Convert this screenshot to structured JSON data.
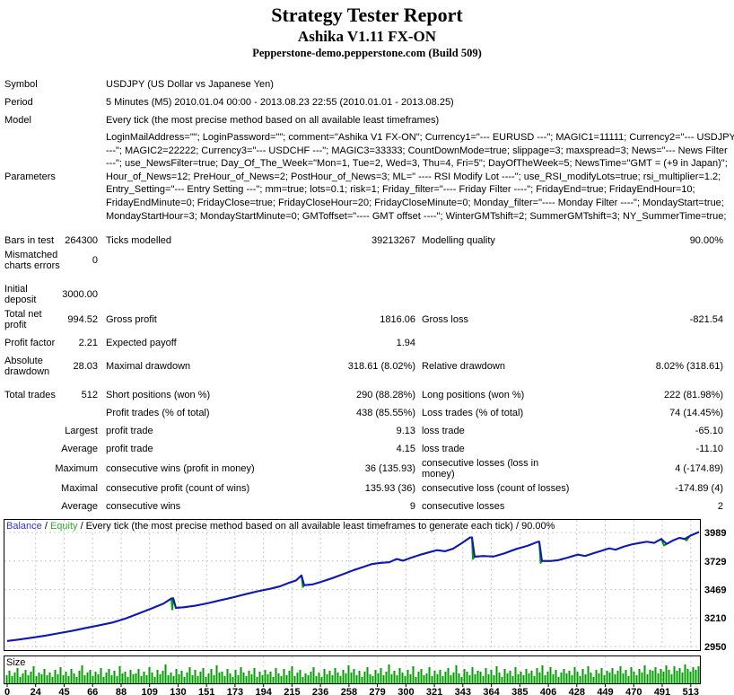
{
  "header": {
    "title": "Strategy Tester Report",
    "subtitle": "Ashika V1.11 FX-ON",
    "server": "Pepperstone-demo.pepperstone.com (Build 509)"
  },
  "info_table": {
    "rows": [
      {
        "label": "Symbol",
        "value": "USDJPY (US Dollar vs Japanese Yen)"
      },
      {
        "label": "Period",
        "value": "5 Minutes (M5) 2010.01.04 00:00 - 2013.08.23 22:55 (2010.01.01 - 2013.08.25)"
      },
      {
        "label": "Model",
        "value": "Every tick (the most precise method based on all available least timeframes)"
      }
    ],
    "parameters_label": "Parameters",
    "parameters_lines": [
      "LoginMailAddress=\"\"; LoginPassword=\"\"; comment=\"Ashika V1 FX-ON\"; Currency1=\"--- EURUSD ---\"; MAGIC1=11111; Currency2=\"--- USDJPY",
      "---\"; MAGIC2=22222; Currency3=\"--- USDCHF ---\"; MAGIC3=33333; CountDownMode=true; slippage=3; maxspread=3; News=\"--- News Filter",
      "---\"; use_NewsFilter=true; Day_Of_The_Week=\"Mon=1, Tue=2, Wed=3, Thu=4, Fri=5\"; DayOfTheWeek=5; NewsTime=\"GMT = (+9 in Japan)\";",
      "Hour_of_News=12; PreHour_of_News=2; PostHour_of_News=3; ML=\" ---- RSI Modify Lot ----\"; use_RSI_modifyLots=true; rsi_multiplier=1.2;",
      "Entry_Setting=\"--- Entry Setting ---\"; mm=true; lots=0.1; risk=1; Friday_filter=\"---- Friday Filter ----\"; FridayEnd=true; FridayEndHour=10;",
      "FridayEndMinute=0; FridayClose=true; FridayCloseHour=20; FridayCloseMinute=0; Monday_filter=\"---- Monday Filter ----\"; MondayStart=true;",
      "MondayStartHour=3; MondayStartMinute=0; GMToffset=\"---- GMT offset ----\"; WinterGMTshift=2; SummerGMTshift=3; NY_SummerTime=true;"
    ]
  },
  "stats_table": {
    "rows": [
      {
        "c1": "Bars in test",
        "v1": "264300",
        "c2": "Ticks modelled",
        "v2": "39213267",
        "c3": "Modelling quality",
        "v3": "90.00%"
      },
      {
        "c1": "Mismatched charts errors",
        "v1": "0"
      },
      {
        "c1": "Initial deposit",
        "v1": "3000.00"
      },
      {
        "c1": "Total net profit",
        "v1": "994.52",
        "c2": "Gross profit",
        "v2": "1816.06",
        "c3": "Gross loss",
        "v3": "-821.54"
      },
      {
        "c1": "Profit factor",
        "v1": "2.21",
        "c2": "Expected payoff",
        "v2": "1.94"
      },
      {
        "c1": "Absolute drawdown",
        "v1": "28.03",
        "c2": "Maximal drawdown",
        "v2": "318.61 (8.02%)",
        "c3": "Relative drawdown",
        "v3": "8.02% (318.61)"
      },
      {
        "c1": "Total trades",
        "v1": "512",
        "c2": "Short positions (won %)",
        "v2": "290 (88.28%)",
        "c3": "Long positions (won %)",
        "v3": "222 (81.98%)"
      },
      {
        "c2": "Profit trades (% of total)",
        "v2": "438 (85.55%)",
        "c3": "Loss trades (% of total)",
        "v3": "74 (14.45%)"
      },
      {
        "v1": "Largest",
        "c2": "profit trade",
        "v2": "9.13",
        "c3": "loss trade",
        "v3": "-65.10"
      },
      {
        "v1": "Average",
        "c2": "profit trade",
        "v2": "4.15",
        "c3": "loss trade",
        "v3": "-11.10"
      },
      {
        "v1": "Maximum",
        "c2": "consecutive wins (profit in money)",
        "v2": "36 (135.93)",
        "c3": "consecutive losses (loss in money)",
        "v3": "4 (-174.89)"
      },
      {
        "v1": "Maximal",
        "c2": "consecutive profit (count of wins)",
        "v2": "135.93 (36)",
        "c3": "consecutive loss (count of losses)",
        "v3": "-174.89 (4)"
      },
      {
        "v1": "Average",
        "c2": "consecutive wins",
        "v2": "9",
        "c3": "consecutive losses",
        "v3": "2"
      }
    ]
  },
  "chart_data": [
    {
      "type": "line",
      "title": "Balance / Equity / Every tick (the most precise method based on all available least timeframes to generate each tick) / 90.00%",
      "legend": {
        "balance_label": "Balance",
        "separator": " / ",
        "equity_label": "Equity",
        "suffix": " / Every tick (the most precise method based on all available least timeframes to generate each tick) / 90.00%",
        "balance_color": "#3333cc",
        "equity_color": "#2eb030"
      },
      "grid": true,
      "yticks": [
        3989,
        3729,
        3469,
        3210,
        2950
      ],
      "ylim": [
        2950,
        4080
      ],
      "series": [
        {
          "name": "Balance",
          "color": "#1414b8",
          "points": [
            [
              8,
              3000
            ],
            [
              20,
              3012
            ],
            [
              35,
              3030
            ],
            [
              50,
              3048
            ],
            [
              65,
              3070
            ],
            [
              80,
              3092
            ],
            [
              95,
              3118
            ],
            [
              110,
              3142
            ],
            [
              125,
              3168
            ],
            [
              140,
              3205
            ],
            [
              155,
              3252
            ],
            [
              170,
              3300
            ],
            [
              182,
              3340
            ],
            [
              191,
              3388
            ],
            [
              193,
              3390
            ],
            [
              196,
              3302
            ],
            [
              205,
              3308
            ],
            [
              218,
              3322
            ],
            [
              232,
              3345
            ],
            [
              246,
              3372
            ],
            [
              260,
              3398
            ],
            [
              274,
              3428
            ],
            [
              288,
              3455
            ],
            [
              302,
              3478
            ],
            [
              312,
              3498
            ],
            [
              322,
              3530
            ],
            [
              330,
              3552
            ],
            [
              336,
              3598
            ],
            [
              339,
              3508
            ],
            [
              348,
              3515
            ],
            [
              358,
              3540
            ],
            [
              370,
              3572
            ],
            [
              382,
              3608
            ],
            [
              394,
              3645
            ],
            [
              404,
              3672
            ],
            [
              414,
              3700
            ],
            [
              424,
              3712
            ],
            [
              434,
              3718
            ],
            [
              442,
              3748
            ],
            [
              449,
              3732
            ],
            [
              458,
              3758
            ],
            [
              468,
              3785
            ],
            [
              478,
              3808
            ],
            [
              487,
              3828
            ],
            [
              496,
              3818
            ],
            [
              505,
              3842
            ],
            [
              514,
              3888
            ],
            [
              524,
              3944
            ],
            [
              526,
              3944
            ],
            [
              529,
              3768
            ],
            [
              538,
              3775
            ],
            [
              550,
              3770
            ],
            [
              562,
              3798
            ],
            [
              575,
              3838
            ],
            [
              588,
              3868
            ],
            [
              599,
              3903
            ],
            [
              601,
              3905
            ],
            [
              604,
              3730
            ],
            [
              614,
              3729
            ],
            [
              622,
              3736
            ],
            [
              632,
              3758
            ],
            [
              644,
              3788
            ],
            [
              652,
              3775
            ],
            [
              662,
              3802
            ],
            [
              671,
              3824
            ],
            [
              679,
              3844
            ],
            [
              686,
              3832
            ],
            [
              695,
              3860
            ],
            [
              704,
              3880
            ],
            [
              713,
              3894
            ],
            [
              721,
              3905
            ],
            [
              729,
              3894
            ],
            [
              737,
              3930
            ],
            [
              743,
              3884
            ],
            [
              750,
              3916
            ],
            [
              757,
              3940
            ],
            [
              763,
              3930
            ],
            [
              769,
              3958
            ],
            [
              774,
              3976
            ],
            [
              779,
              3994
            ]
          ]
        },
        {
          "name": "Equity",
          "color": "#00a000",
          "extra_points": [
            [
              192,
              3288
            ],
            [
              337.5,
              3492
            ],
            [
              527,
              3748
            ],
            [
              602.5,
              3712
            ],
            [
              740,
              3870
            ],
            [
              765,
              3916
            ]
          ]
        }
      ]
    },
    {
      "type": "bar",
      "title": "Size",
      "bar_color": "#00a000",
      "xtick_labels": [
        "0",
        "24",
        "45",
        "66",
        "88",
        "109",
        "130",
        "151",
        "173",
        "194",
        "215",
        "236",
        "258",
        "279",
        "300",
        "321",
        "343",
        "364",
        "385",
        "406",
        "428",
        "449",
        "470",
        "491",
        "513"
      ],
      "values": [
        9,
        14,
        8,
        12,
        17,
        7,
        11,
        15,
        9,
        13,
        19,
        8,
        12,
        10,
        16,
        9,
        12,
        7,
        15,
        10,
        18,
        9,
        13,
        8,
        16,
        11,
        7,
        14,
        20,
        9,
        12,
        15,
        8,
        13,
        10,
        17,
        7,
        12,
        16,
        9,
        14,
        8,
        19,
        11,
        13,
        7,
        15,
        10,
        11,
        16,
        8,
        13,
        9,
        18,
        12,
        7,
        15,
        10,
        14,
        21,
        9,
        12,
        8,
        16,
        10,
        14,
        7,
        12,
        18,
        9,
        15,
        8,
        13,
        17,
        7,
        11,
        16,
        9,
        20,
        12,
        13,
        8,
        16,
        11,
        7,
        15,
        9,
        18,
        12,
        8,
        14,
        10,
        17,
        7,
        13,
        9,
        15,
        10,
        13,
        7,
        17,
        11,
        8,
        16,
        9,
        14,
        19,
        8,
        12,
        15,
        7,
        11,
        9,
        13,
        18,
        8,
        12,
        7,
        16,
        10,
        14,
        9,
        17,
        12,
        8,
        15,
        11,
        20,
        12,
        16,
        9,
        14,
        7,
        13,
        18,
        10,
        8,
        15,
        11,
        17,
        9,
        13,
        21,
        10,
        14,
        9,
        17,
        12,
        8,
        15,
        10,
        19,
        7,
        13,
        16,
        9,
        11,
        18,
        8,
        14,
        10,
        15,
        8,
        13,
        17,
        9,
        12,
        20,
        11,
        7,
        16,
        13,
        9,
        18,
        10,
        14,
        13,
        8,
        17,
        10,
        15,
        9,
        19,
        12,
        7,
        16,
        11,
        14,
        8,
        18,
        10,
        13,
        9,
        16,
        11,
        14,
        8,
        17,
        12,
        20,
        9,
        13,
        18,
        10,
        15,
        7,
        12,
        16,
        11,
        14,
        9,
        18,
        13,
        8,
        16,
        10,
        19,
        12,
        7,
        15,
        11,
        17,
        9,
        14,
        12,
        17,
        10,
        14,
        19,
        11,
        15,
        8,
        18,
        13,
        9,
        16,
        12,
        20,
        10,
        15,
        14,
        18,
        11,
        16,
        13,
        20,
        15,
        10,
        19,
        14,
        17,
        12,
        21,
        16,
        13,
        18,
        15,
        19
      ]
    }
  ],
  "colors": {
    "grid": "#c8c8c8",
    "panel_border": "#000000",
    "background": "#ffffff",
    "text": "#000000"
  }
}
